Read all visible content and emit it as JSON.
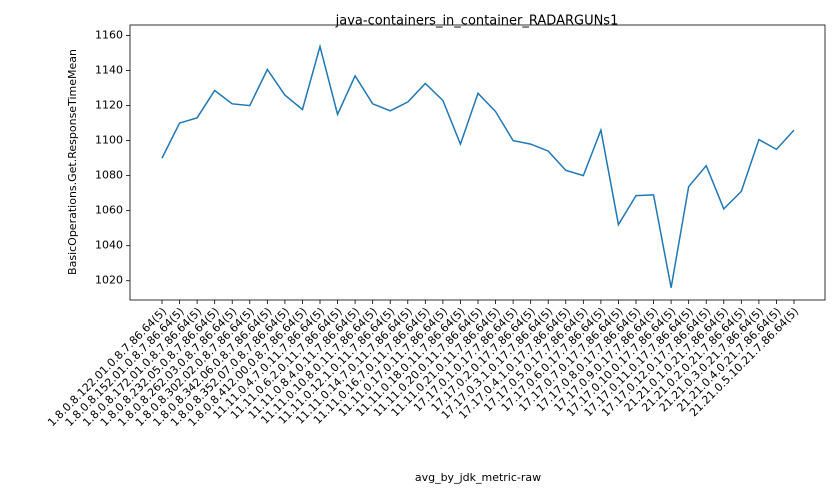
{
  "chart_data": {
    "type": "line",
    "title": "java-containers_in_container_RADARGUNs1",
    "x_label": "avg_by_jdk_metric-raw",
    "y_label": "BasicOperations.Get.ResponseTimeMean",
    "categories": [
      "1.8.0.8.122.01.0.8.7.86.64(5)",
      "1.8.0.8.152.01.0.8.7.86.64(5)",
      "1.8.0.8.172.01.0.8.7.86.64(5)",
      "1.8.0.8.232.05.0.8.7.86.64(5)",
      "1.8.0.8.262.03.0.8.7.86.64(5)",
      "1.8.0.8.302.02.0.8.7.86.64(5)",
      "1.8.0.8.342.06.0.8.7.86.64(5)",
      "1.8.0.8.352.07.0.8.7.86.64(5)",
      "1.8.0.8.412.00.0.8.7.86.64(5)",
      "11.11.0.4.7.0.11.7.86.64(5)",
      "11.11.0.6.2.0.11.7.86.64(5)",
      "11.11.0.8.4.0.11.7.86.64(5)",
      "11.11.0.10.8.0.11.7.86.64(5)",
      "11.11.0.12.1.0.11.7.86.64(5)",
      "11.11.0.14.7.0.11.7.86.64(5)",
      "11.11.0.16.7.0.11.7.86.64(5)",
      "11.11.0.17.0.11.7.86.64(5)",
      "11.11.0.18.0.11.7.86.64(5)",
      "11.11.0.20.0.11.7.86.64(5)",
      "11.11.0.21.0.11.7.86.64(5)",
      "17.17.0.1.0.17.7.86.64(5)",
      "17.17.0.2.0.17.7.86.64(5)",
      "17.17.0.3.1.0.17.7.86.64(5)",
      "17.17.0.4.1.0.17.7.86.64(5)",
      "17.17.0.5.0.17.7.86.64(5)",
      "17.17.0.6.0.17.7.86.64(5)",
      "17.17.0.7.0.17.7.86.64(5)",
      "17.17.0.8.0.17.7.86.64(5)",
      "17.17.0.9.0.17.7.86.64(5)",
      "17.17.0.10.0.17.7.86.64(5)",
      "17.17.0.11.0.17.7.86.64(5)",
      "17.17.0.12.0.17.7.86.64(5)",
      "21.21.0.1.0.21.7.86.64(5)",
      "21.21.0.2.0.21.7.86.64(5)",
      "21.21.0.3.0.21.7.86.64(5)",
      "21.21.0.4.0.21.7.86.64(5)",
      "21.21.0.5.10.21.7.86.64(5)"
    ],
    "values": [
      1090,
      1110,
      1113,
      1128.6,
      1121,
      1120,
      1140.6,
      1126,
      1117.7,
      1153.7,
      1115,
      1137,
      1121,
      1117,
      1122,
      1132.6,
      1122.9,
      1098,
      1127,
      1116.6,
      1100,
      1098,
      1094,
      1083,
      1080,
      1106,
      1052,
      1068.6,
      1069,
      1016,
      1073.7,
      1085.7,
      1061,
      1071,
      1100.6,
      1095,
      1106
    ],
    "color": "#1f77b4",
    "ylim": [
      1009,
      1166
    ],
    "yticks": [
      1020,
      1040,
      1060,
      1080,
      1100,
      1120,
      1140,
      1160
    ]
  }
}
